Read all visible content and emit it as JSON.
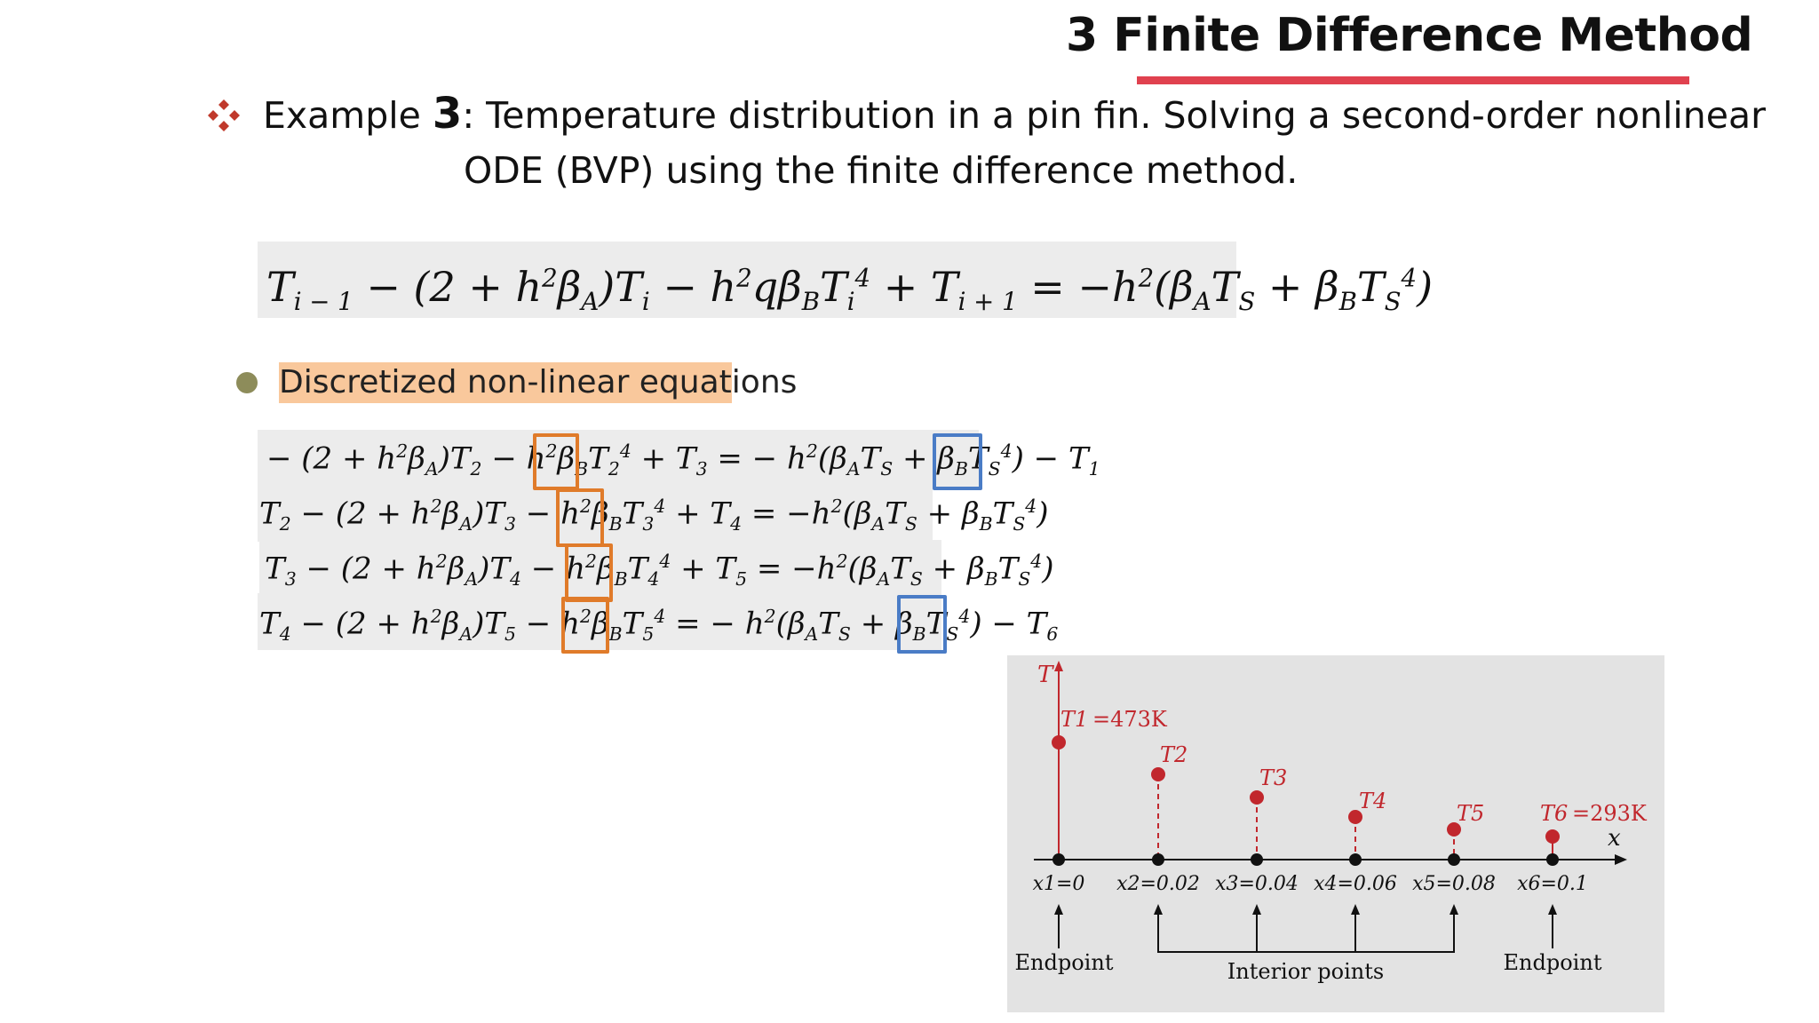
{
  "slide": {
    "title": "3 Finite Difference Method",
    "example": {
      "prefix": "Example",
      "number": "3",
      "line1": ": Temperature distribution in a pin fin. Solving a second-order nonlinear",
      "line2": "ODE (BVP) using the finite difference method."
    },
    "bullet": "Discretized non-linear equations"
  },
  "colors": {
    "title_rule": "#e0414f",
    "diamond": "#c0392b",
    "highlight": "#f9c89c",
    "orange_box": "#e07b2a",
    "blue_box": "#4a7cc6",
    "figure_red": "#c1272d"
  },
  "diagram": {
    "t_axis": "T",
    "x_axis": "x",
    "points": [
      {
        "label": "T1",
        "value": "=473K",
        "x": "x1=0"
      },
      {
        "label": "T2",
        "value": "",
        "x": "x2=0.02"
      },
      {
        "label": "T3",
        "value": "",
        "x": "x3=0.04"
      },
      {
        "label": "T4",
        "value": "",
        "x": "x4=0.06"
      },
      {
        "label": "T5",
        "value": "",
        "x": "x5=0.08"
      },
      {
        "label": "T6",
        "value": "=293K",
        "x": "x6=0.1"
      }
    ],
    "endpoint_left": "Endpoint",
    "interior": "Interior points",
    "endpoint_right": "Endpoint"
  }
}
